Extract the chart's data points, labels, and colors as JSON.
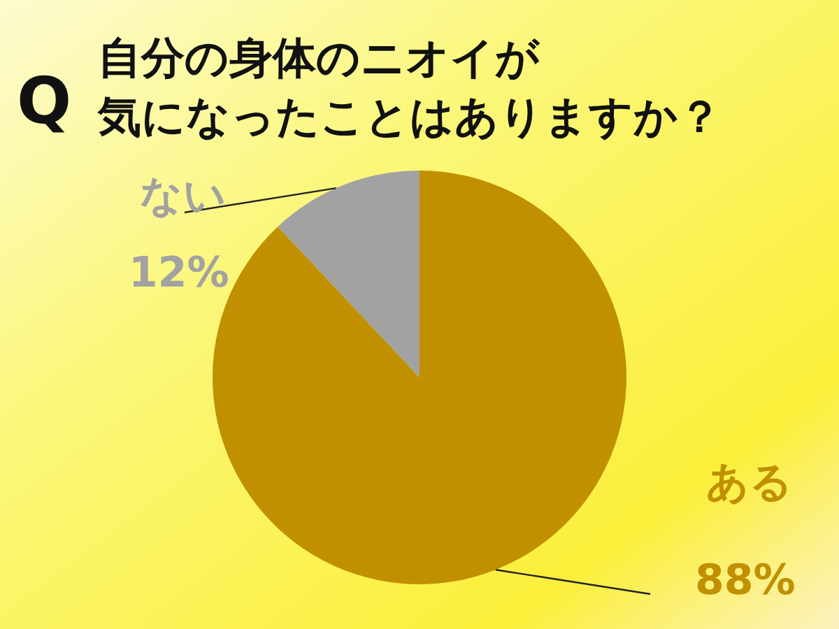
{
  "chart_data": {
    "type": "pie",
    "title": "自分の身体のニオイが",
    "subtitle": "気になったことはありますか？",
    "annotations": [
      "Q"
    ],
    "categories": [
      "ある",
      "ない"
    ],
    "values": [
      88,
      12
    ],
    "colors": [
      "#c09000",
      "#a2a2a2"
    ],
    "value_labels": [
      "88%",
      "12%"
    ],
    "legend": false
  }
}
